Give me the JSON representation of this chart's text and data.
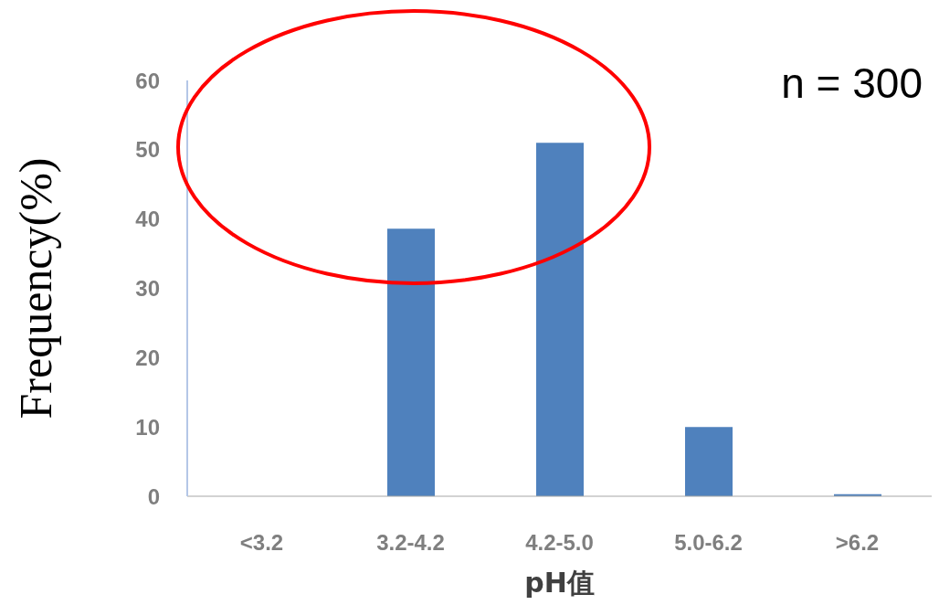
{
  "chart_data": {
    "type": "bar",
    "xlabel": "pH值",
    "ylabel": "Frequency(%)",
    "categories": [
      "<3.2",
      "3.2-4.2",
      "4.2-5.0",
      "5.0-6.2",
      ">6.2"
    ],
    "values": [
      0,
      38.6,
      51,
      10,
      0.3
    ],
    "color": "#4f81bd",
    "ylim": [
      0,
      60
    ],
    "yticks": [
      0,
      10,
      20,
      30,
      40,
      50,
      60
    ],
    "grid": false,
    "annotations": [
      "n = 300"
    ]
  }
}
